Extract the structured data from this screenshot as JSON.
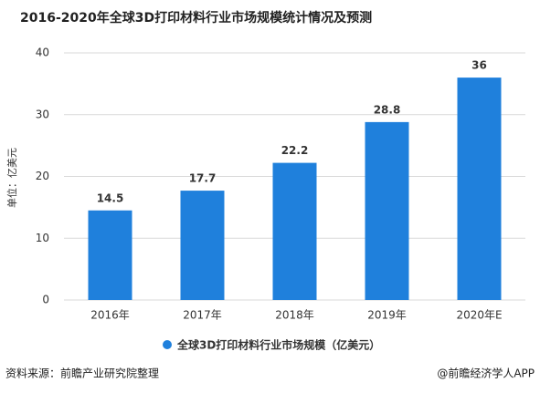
{
  "chart_data": {
    "type": "bar",
    "title": "2016-2020年全球3D打印材料行业市场规模统计情况及预测",
    "y_label": "单位：亿美元",
    "categories": [
      "2016年",
      "2017年",
      "2018年",
      "2019年",
      "2020年E"
    ],
    "series": [
      {
        "name": "全球3D打印材料行业市场规模（亿美元）",
        "color": "#1f80dc",
        "values": [
          14.5,
          17.7,
          22.2,
          28.8,
          36
        ]
      }
    ],
    "ylim": [
      0,
      40
    ],
    "yticks": [
      0,
      10,
      20,
      30,
      40
    ],
    "grid": true,
    "legend": "bottom"
  },
  "footer": {
    "source": "资料来源：前瞻产业研究院整理",
    "credit": "@前瞻经济学人APP"
  }
}
